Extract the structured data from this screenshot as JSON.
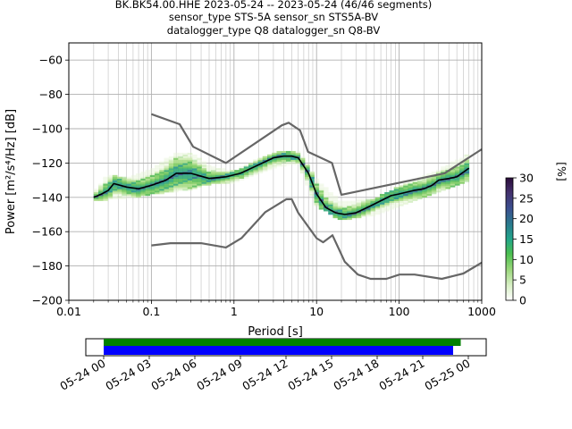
{
  "header": {
    "line1": "BK.BK54.00.HHE   2023-05-24 -- 2023-05-24  (46/46 segments)",
    "line2": "sensor_type STS-5A sensor_sn STS5A-BV",
    "line3": "datalogger_type Q8 datalogger_sn Q8-BV"
  },
  "chart_data": [
    {
      "type": "heatmap",
      "title": "",
      "xlabel": "Period [s]",
      "ylabel": "Power [m²/s⁴/Hz] [dB]",
      "xscale": "log",
      "xlim": [
        0.01,
        1000
      ],
      "ylim": [
        -200,
        -50
      ],
      "xticks": [
        0.01,
        0.1,
        1,
        10,
        100,
        1000
      ],
      "xtick_labels": [
        "0.01",
        "0.1",
        "1",
        "10",
        "100",
        "1000"
      ],
      "yticks": [
        -200,
        -180,
        -160,
        -140,
        -120,
        -100,
        -80,
        -60
      ],
      "ytick_labels": [
        "−200",
        "−180",
        "−160",
        "−140",
        "−120",
        "−100",
        "−80",
        "−60"
      ],
      "grid": true,
      "colorbar": {
        "label": "[%]",
        "range": [
          0,
          30
        ],
        "ticks": [
          0,
          5,
          10,
          15,
          20,
          25,
          30
        ],
        "tick_labels": [
          "0",
          "5",
          "10",
          "15",
          "20",
          "25",
          "30"
        ],
        "colormap": [
          "#ffffff",
          "#d9f0c6",
          "#9bd77c",
          "#4bbf4f",
          "#22a58a",
          "#2a7b8e",
          "#3b4f8f",
          "#43316d",
          "#2b0c3a"
        ]
      },
      "series": [
        {
          "role": "new-high-noise-model",
          "color": "#666666",
          "x": [
            0.1,
            0.22,
            0.32,
            0.8,
            3.8,
            4.6,
            6.3,
            7.9,
            15.4,
            20,
            354.8,
            1000
          ],
          "y": [
            -91.5,
            -97.4,
            -110.5,
            -120,
            -98,
            -96.5,
            -101,
            -113.5,
            -120,
            -138.5,
            -126,
            -112
          ]
        },
        {
          "role": "new-low-noise-model",
          "color": "#666666",
          "x": [
            0.1,
            0.17,
            0.4,
            0.8,
            1.24,
            2.4,
            4.3,
            5,
            6,
            10,
            12,
            15.6,
            21.9,
            31.6,
            45,
            70,
            101,
            154,
            328,
            600,
            1000
          ],
          "y": [
            -168,
            -166.7,
            -166.7,
            -169.2,
            -163.7,
            -148.6,
            -141.1,
            -141.1,
            -149,
            -163.8,
            -166.2,
            -162.1,
            -177.5,
            -185,
            -187.5,
            -187.5,
            -185,
            -185,
            -187.5,
            -184.4,
            -178
          ]
        },
        {
          "role": "mode-psd",
          "color": "#000000",
          "x": [
            0.02,
            0.025,
            0.03,
            0.035,
            0.05,
            0.07,
            0.1,
            0.15,
            0.2,
            0.3,
            0.5,
            0.8,
            1.2,
            2,
            3,
            4,
            5,
            6,
            8,
            10,
            13,
            17,
            22,
            30,
            45,
            60,
            80,
            100,
            150,
            200,
            250,
            300,
            400,
            500,
            700
          ],
          "y": [
            -140,
            -138,
            -136,
            -132,
            -134,
            -135,
            -133,
            -130,
            -126,
            -126,
            -129,
            -128,
            -126,
            -121,
            -117,
            -116,
            -116,
            -117,
            -126,
            -138,
            -146,
            -149,
            -150,
            -149,
            -145,
            -142,
            -139,
            -138,
            -136,
            -135,
            -133,
            -130,
            -129,
            -128,
            -123
          ]
        }
      ],
      "density_band": {
        "x": [
          0.02,
          0.03,
          0.05,
          0.1,
          0.2,
          0.3,
          0.5,
          1,
          2,
          4,
          6,
          10,
          20,
          50,
          100,
          300,
          700
        ],
        "upper": [
          -137,
          -127,
          -129,
          -124,
          -114,
          -114,
          -122,
          -125,
          -118,
          -113,
          -113,
          -130,
          -143,
          -141,
          -134,
          -124,
          -115
        ],
        "lower": [
          -142,
          -141,
          -140,
          -138,
          -136,
          -135,
          -132,
          -131,
          -126,
          -121,
          -120,
          -145,
          -153,
          -150,
          -145,
          -136,
          -130
        ]
      }
    },
    {
      "type": "timeline",
      "xlim_label": [
        "05-24 00",
        "05-25 00"
      ],
      "xtick_labels": [
        "05-24 00",
        "05-24 03",
        "05-24 06",
        "05-24 09",
        "05-24 12",
        "05-24 15",
        "05-24 18",
        "05-24 21",
        "05-25 00"
      ],
      "bars": [
        {
          "role": "data-availability",
          "color": "#008000",
          "start_h": 0,
          "end_h": 23.5
        },
        {
          "role": "psd-segments",
          "color": "#0000ff",
          "start_h": 0,
          "end_h": 23.0
        }
      ]
    }
  ]
}
